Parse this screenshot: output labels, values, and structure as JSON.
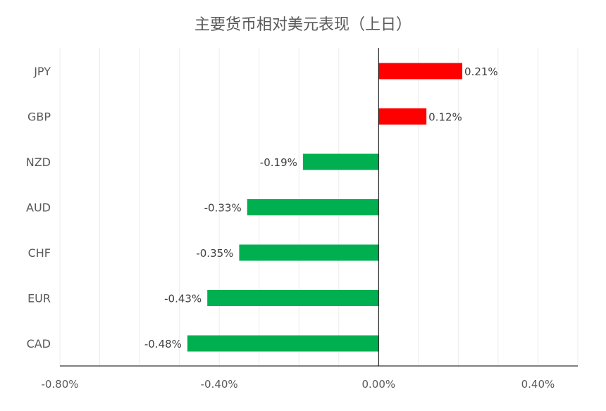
{
  "chart_data": {
    "type": "bar",
    "orientation": "horizontal",
    "title": "主要货币相对美元表现（上日）",
    "xlabel": "",
    "ylabel": "",
    "categories": [
      "JPY",
      "GBP",
      "NZD",
      "AUD",
      "CHF",
      "EUR",
      "CAD"
    ],
    "values": [
      0.21,
      0.12,
      -0.19,
      -0.33,
      -0.35,
      -0.43,
      -0.48
    ],
    "data_labels": [
      "0.21%",
      "0.12%",
      "-0.19%",
      "-0.33%",
      "-0.35%",
      "-0.43%",
      "-0.48%"
    ],
    "xlim": [
      -0.8,
      0.5
    ],
    "xticks": [
      -0.8,
      -0.4,
      0.0,
      0.4
    ],
    "xtick_labels": [
      "-0.80%",
      "-0.40%",
      "0.00%",
      "0.40%"
    ],
    "grid": true,
    "legend": "none",
    "colors": {
      "positive": "#ff0000",
      "negative": "#00b050"
    }
  }
}
